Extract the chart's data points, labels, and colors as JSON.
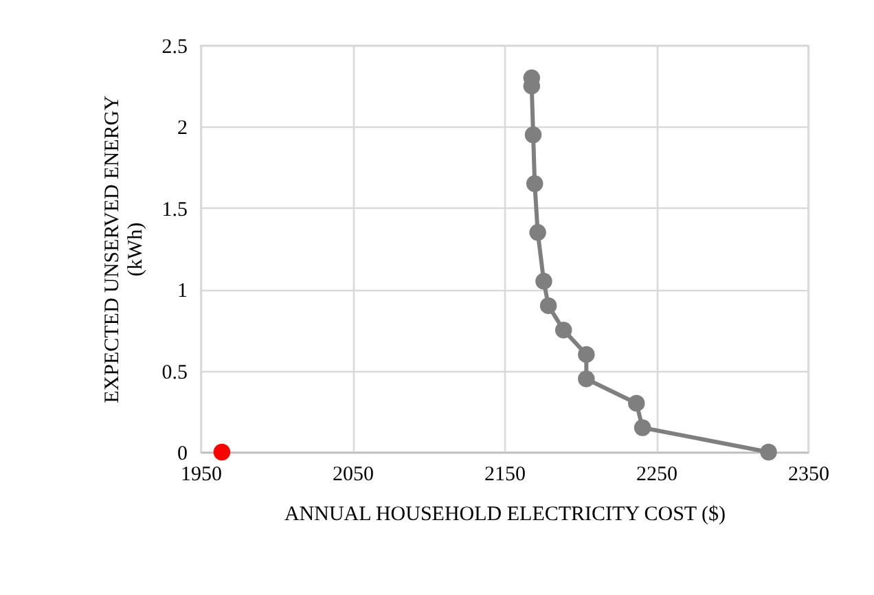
{
  "chart_data": {
    "type": "line",
    "xlabel": "ANNUAL HOUSEHOLD ELECTRICITY COST ($)",
    "ylabel": "EXPECTED UNSERVED ENERGY (kWh)",
    "xlim": [
      1950,
      2350
    ],
    "xticks": [
      1950,
      2050,
      2150,
      2250,
      2350
    ],
    "ylim": [
      0,
      2.5
    ],
    "yticks": [
      0,
      {
        "value": 0.5,
        "label": "0.5"
      },
      1,
      {
        "value": 1.5,
        "label": "1.5"
      },
      2,
      {
        "value": 2.5,
        "label": "2.5"
      }
    ],
    "grid": true,
    "marker": "circle",
    "line_style": "solid",
    "series": [
      {
        "color": "#7f7f7f",
        "x": [
          2168,
          2168,
          2169,
          2170,
          2172,
          2176,
          2179,
          2189,
          2204,
          2204,
          2237,
          2241,
          2324
        ],
        "values": [
          2.3,
          2.25,
          1.95,
          1.65,
          1.35,
          1.05,
          0.9,
          0.75,
          0.6,
          0.45,
          0.3,
          0.15,
          0
        ]
      },
      {
        "type": "scatter",
        "color": "#ff0000",
        "x": [
          1964
        ],
        "values": [
          0
        ]
      }
    ]
  }
}
